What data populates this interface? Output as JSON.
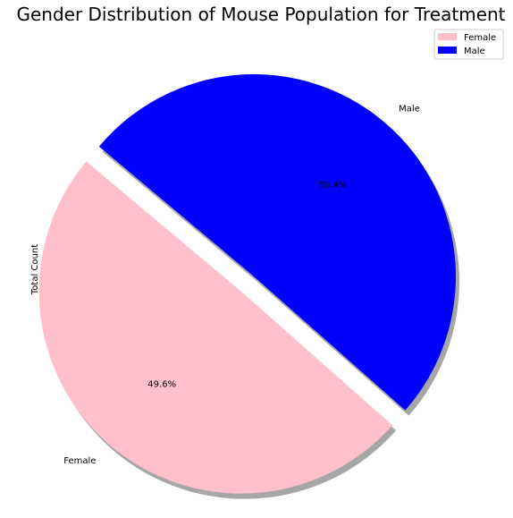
{
  "chart_data": {
    "type": "pie",
    "title": "Gender Distribution of Mouse Population for Treatment",
    "ylabel": "Total Count",
    "categories": [
      "Female",
      "Male"
    ],
    "values": [
      49.6,
      50.4
    ],
    "percent_labels": [
      "49.6%",
      "50.4%"
    ],
    "colors": [
      "#ffc0cb",
      "#0000ff"
    ],
    "exploded": [
      "Female"
    ],
    "shadow": true,
    "start_angle_deg": 140,
    "legend": {
      "placement": "top-right",
      "entries": [
        "Female",
        "Male"
      ]
    }
  }
}
